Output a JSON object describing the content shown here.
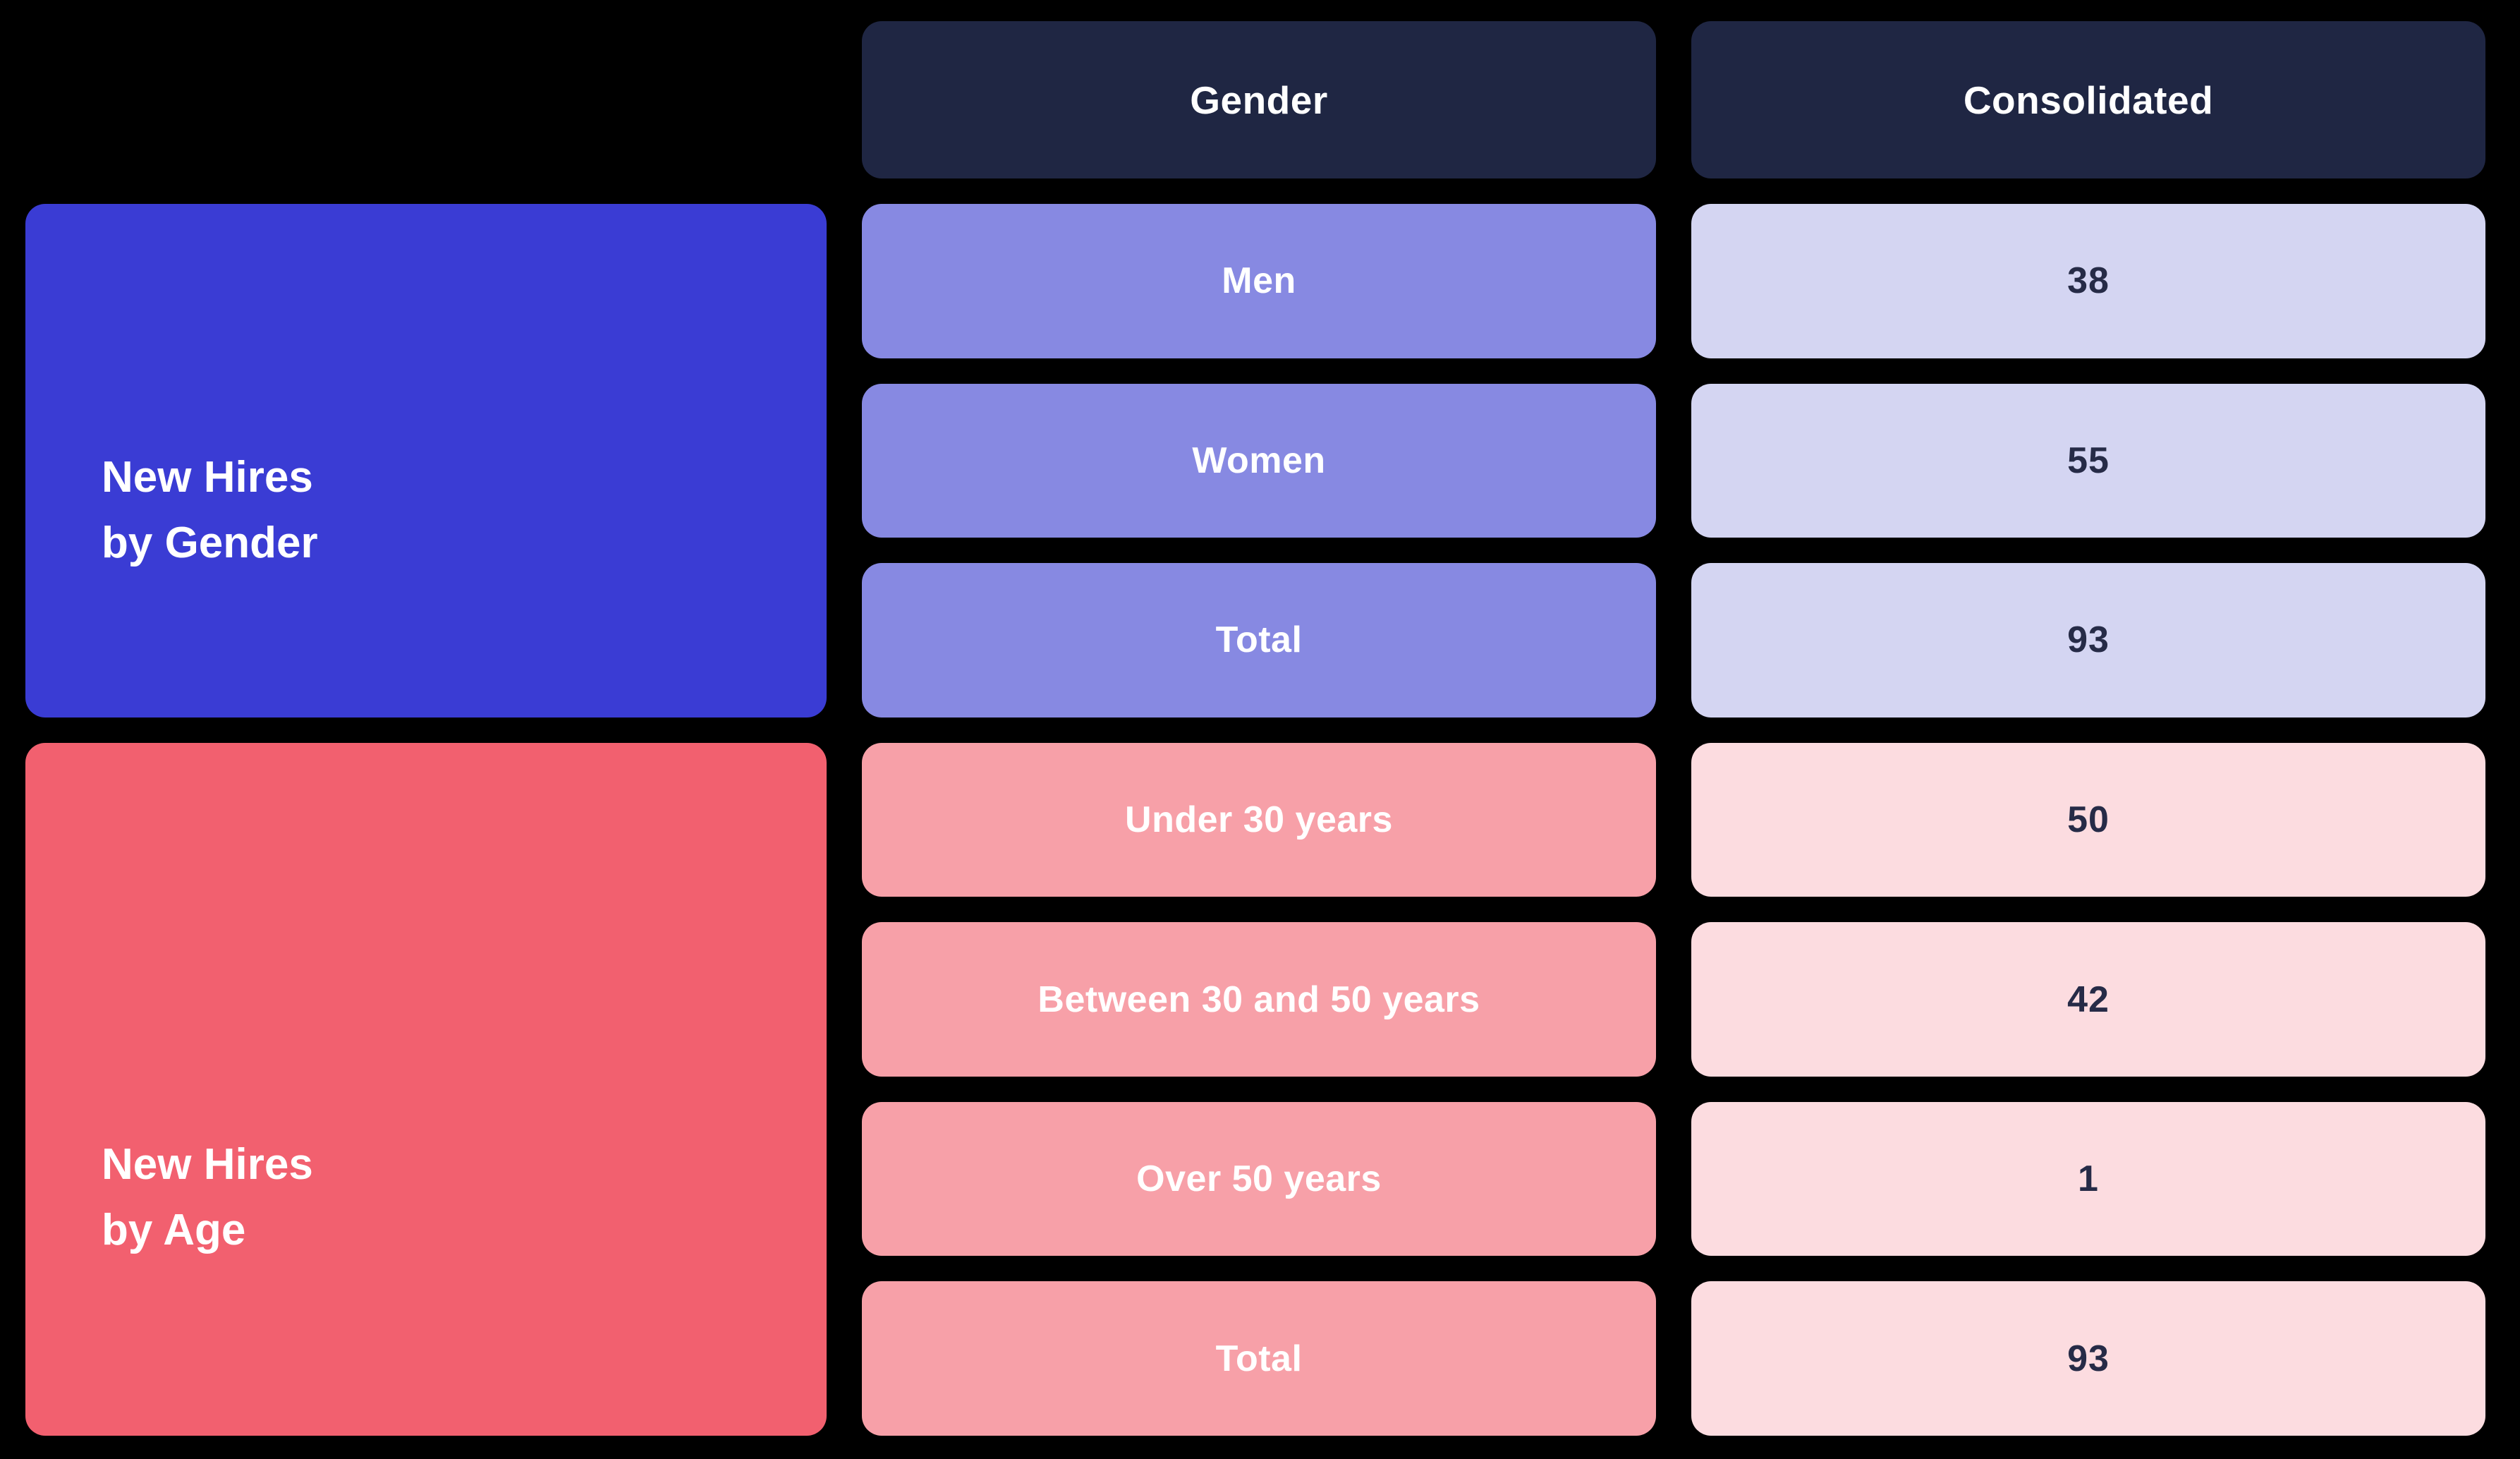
{
  "table": {
    "headers": {
      "category": "Gender",
      "consolidated": "Consolidated"
    },
    "groups": [
      {
        "title": {
          "line1": "New Hires",
          "line2": "by Gender"
        },
        "colors": {
          "block": "#3a3cd4",
          "label_cell": "#8789e2",
          "value_cell": "#d4d5f2"
        },
        "rows": [
          {
            "label": "Men",
            "value": "38"
          },
          {
            "label": "Women",
            "value": "55"
          },
          {
            "label": "Total",
            "value": "93"
          }
        ]
      },
      {
        "title": {
          "line1": "New Hires",
          "line2": "by Age"
        },
        "colors": {
          "block": "#f2606f",
          "label_cell": "#f7a0a8",
          "value_cell": "#fcdce0"
        },
        "rows": [
          {
            "label": "Under 30 years",
            "value": "50"
          },
          {
            "label": "Between 30 and 50 years",
            "value": "42"
          },
          {
            "label": "Over 50 years",
            "value": "1"
          },
          {
            "label": "Total",
            "value": "93"
          }
        ]
      }
    ]
  },
  "colors": {
    "background": "#000000",
    "header_bg": "#1f2643",
    "header_text": "#ffffff",
    "value_text": "#262b47"
  },
  "chart_data": {
    "type": "table",
    "columns": [
      "",
      "Gender",
      "Consolidated"
    ],
    "sections": [
      {
        "title": "New Hires by Gender",
        "rows": [
          [
            "Men",
            38
          ],
          [
            "Women",
            55
          ],
          [
            "Total",
            93
          ]
        ]
      },
      {
        "title": "New Hires by Age",
        "rows": [
          [
            "Under 30 years",
            50
          ],
          [
            "Between 30 and 50 years",
            42
          ],
          [
            "Over 50 years",
            1
          ],
          [
            "Total",
            93
          ]
        ]
      }
    ]
  }
}
